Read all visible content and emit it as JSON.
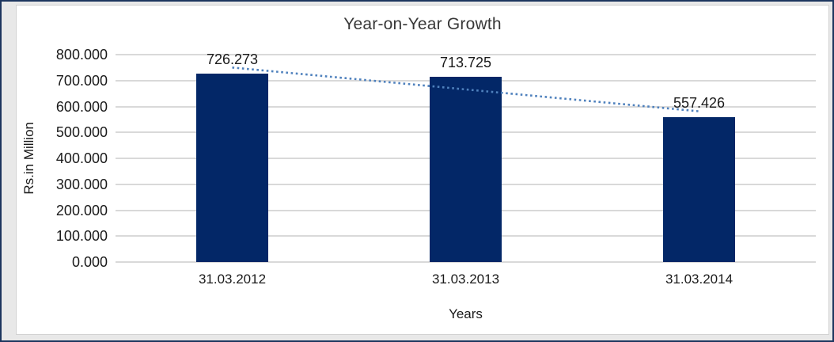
{
  "frame": {
    "outer_border_color": "#1c355e",
    "frame_background": "#e8e8e8",
    "chart_background": "#ffffff",
    "chart_border_color": "#d2d2d2"
  },
  "chart_data": {
    "type": "bar",
    "title": "Year-on-Year Growth",
    "categories": [
      "31.03.2012",
      "31.03.2013",
      "31.03.2014"
    ],
    "values": [
      726.273,
      713.725,
      557.426
    ],
    "value_labels": [
      "726.273",
      "713.725",
      "557.426"
    ],
    "xlabel": "Years",
    "ylabel": "Rs.in Million",
    "ylim": [
      0,
      800
    ],
    "ytick_step": 100,
    "ytick_labels": [
      "800.000",
      "700.000",
      "600.000",
      "500.000",
      "400.000",
      "300.000",
      "200.000",
      "100.000",
      "0.000"
    ],
    "grid": true,
    "legend_position": "none",
    "bar_color": "#032767",
    "gridline_color": "#d9d9d9",
    "label_color": "#1a1a1a",
    "title_color": "#383838",
    "trendline": {
      "type": "linear",
      "style": "dotted",
      "color": "#4f81bd"
    }
  }
}
